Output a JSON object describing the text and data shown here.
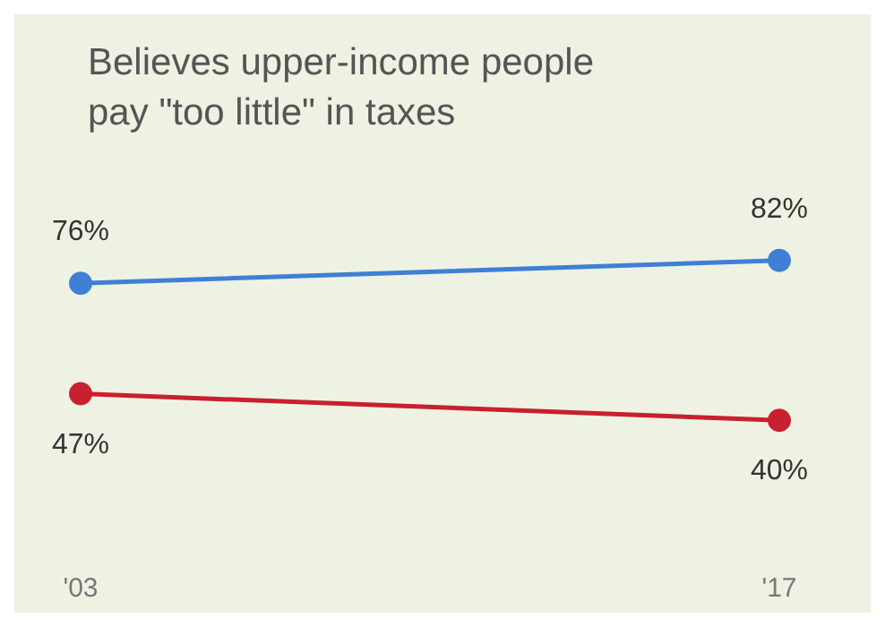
{
  "chart_data": {
    "type": "line",
    "title": "Believes upper-income people pay \"too little\" in taxes",
    "categories": [
      "'03",
      "'17"
    ],
    "series": [
      {
        "color": "#3f7fd6",
        "values": [
          76,
          82
        ],
        "value_labels": [
          "76%",
          "82%"
        ]
      },
      {
        "color": "#c8202f",
        "values": [
          47,
          40
        ],
        "value_labels": [
          "47%",
          "40%"
        ]
      }
    ],
    "marker": "circle",
    "line_style": "solid",
    "grid": false
  }
}
